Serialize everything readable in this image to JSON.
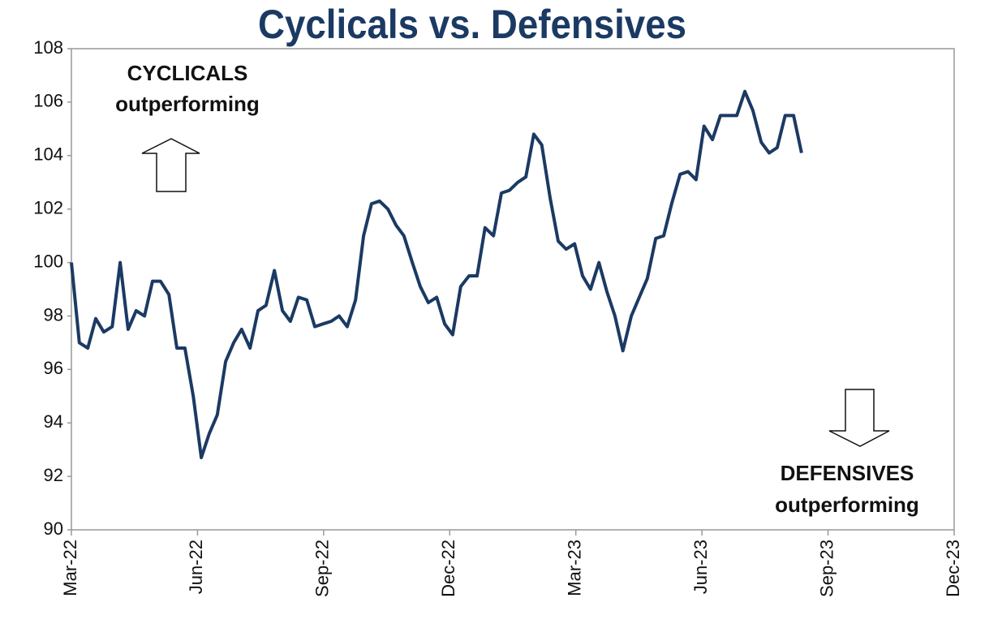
{
  "chart_data": {
    "type": "line",
    "title": "Cyclicals vs. Defensives",
    "annotations": [
      "CYCLICALS",
      "outperforming",
      "DEFENSIVES",
      "outperforming"
    ],
    "color": "#1b3a63",
    "x": [
      0,
      0.19,
      0.39,
      0.58,
      0.77,
      0.97,
      1.16,
      1.35,
      1.54,
      1.74,
      1.93,
      2.12,
      2.32,
      2.51,
      2.7,
      2.9,
      3.09,
      3.28,
      3.47,
      3.67,
      3.86,
      4.05,
      4.25,
      4.44,
      4.63,
      4.83,
      5.02,
      5.21,
      5.4,
      5.6,
      5.79,
      5.98,
      6.18,
      6.37,
      6.56,
      6.76,
      6.95,
      7.14,
      7.33,
      7.53,
      7.72,
      7.91,
      8.11,
      8.3,
      8.49,
      8.69,
      8.88,
      9.07,
      9.26,
      9.46,
      9.65,
      9.84,
      10.04,
      10.23,
      10.42,
      10.62,
      10.81,
      11.0,
      11.19,
      11.39,
      11.58,
      11.77,
      11.97,
      12.16,
      12.35,
      12.55,
      12.74,
      12.93,
      13.12,
      13.32,
      13.51,
      13.7,
      13.9,
      14.09,
      14.28,
      14.48,
      14.67,
      14.86,
      15.05,
      15.25,
      15.44,
      15.63,
      15.83,
      16.02,
      16.21,
      16.41,
      16.6,
      16.79,
      16.98,
      17.18,
      17.37
    ],
    "values": [
      100,
      97,
      96.8,
      97.9,
      97.4,
      97.6,
      100,
      97.5,
      98.2,
      98,
      99.3,
      99.3,
      98.8,
      96.8,
      96.8,
      95,
      92.7,
      93.6,
      94.3,
      96.3,
      97,
      97.5,
      96.8,
      98.2,
      98.4,
      99.7,
      98.2,
      97.8,
      98.7,
      98.6,
      97.6,
      97.7,
      97.8,
      98,
      97.6,
      98.6,
      101,
      102.2,
      102.3,
      102,
      101.4,
      101,
      100,
      99.1,
      98.5,
      98.7,
      97.7,
      97.3,
      99.1,
      99.5,
      99.5,
      101.3,
      101,
      102.6,
      102.7,
      103,
      103.2,
      104.8,
      104.4,
      102.4,
      100.8,
      100.5,
      100.7,
      99.5,
      99,
      100,
      98.9,
      98,
      96.7,
      98,
      98.7,
      99.4,
      100.9,
      101,
      102.2,
      103.3,
      103.4,
      103.1,
      105.1,
      104.6,
      105.5,
      105.5,
      105.5,
      106.4,
      105.7,
      104.5,
      104.1,
      104.3,
      105.5,
      105.5,
      104.1
    ],
    "xlim": [
      0,
      21
    ],
    "xticks": [
      {
        "value": 0,
        "label": "Mar-22"
      },
      {
        "value": 3,
        "label": "Jun-22"
      },
      {
        "value": 6,
        "label": "Sep-22"
      },
      {
        "value": 9,
        "label": "Dec-22"
      },
      {
        "value": 12,
        "label": "Mar-23"
      },
      {
        "value": 15,
        "label": "Jun-23"
      },
      {
        "value": 18,
        "label": "Sep-23"
      },
      {
        "value": 21,
        "label": "Dec-23"
      }
    ],
    "ylim": [
      90,
      108
    ],
    "yticks": [
      90,
      92,
      94,
      96,
      98,
      100,
      102,
      104,
      106,
      108
    ]
  }
}
